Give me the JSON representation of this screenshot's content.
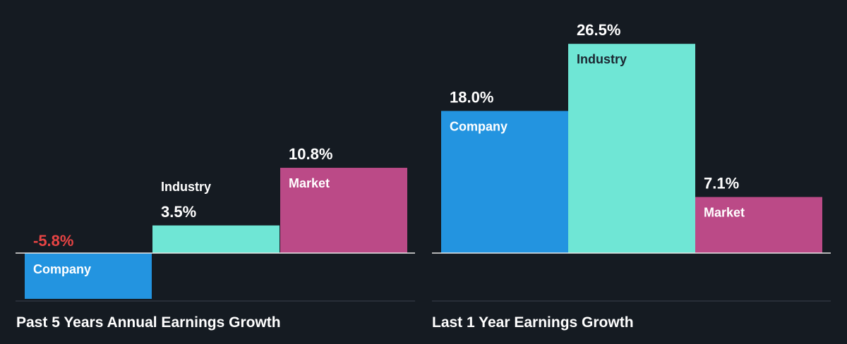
{
  "colors": {
    "background": "#151b22",
    "company": "#2394e0",
    "industry": "#6fe6d5",
    "market": "#bb4a87",
    "negative_value": "#e74444",
    "text": "#ffffff",
    "label_on_light": "#1b2530",
    "baseline": "#e8e8e8"
  },
  "chart_data": [
    {
      "type": "bar",
      "title": "Past 5 Years Annual Earnings Growth",
      "categories": [
        "Company",
        "Industry",
        "Market"
      ],
      "values": [
        -5.8,
        3.5,
        10.8
      ],
      "value_labels": [
        "-5.8%",
        "3.5%",
        "10.8%"
      ],
      "unit": "%",
      "grid": false,
      "legend": "none"
    },
    {
      "type": "bar",
      "title": "Last 1 Year Earnings Growth",
      "categories": [
        "Company",
        "Industry",
        "Market"
      ],
      "values": [
        18.0,
        26.5,
        7.1
      ],
      "value_labels": [
        "18.0%",
        "26.5%",
        "7.1%"
      ],
      "unit": "%",
      "grid": false,
      "legend": "none"
    }
  ]
}
